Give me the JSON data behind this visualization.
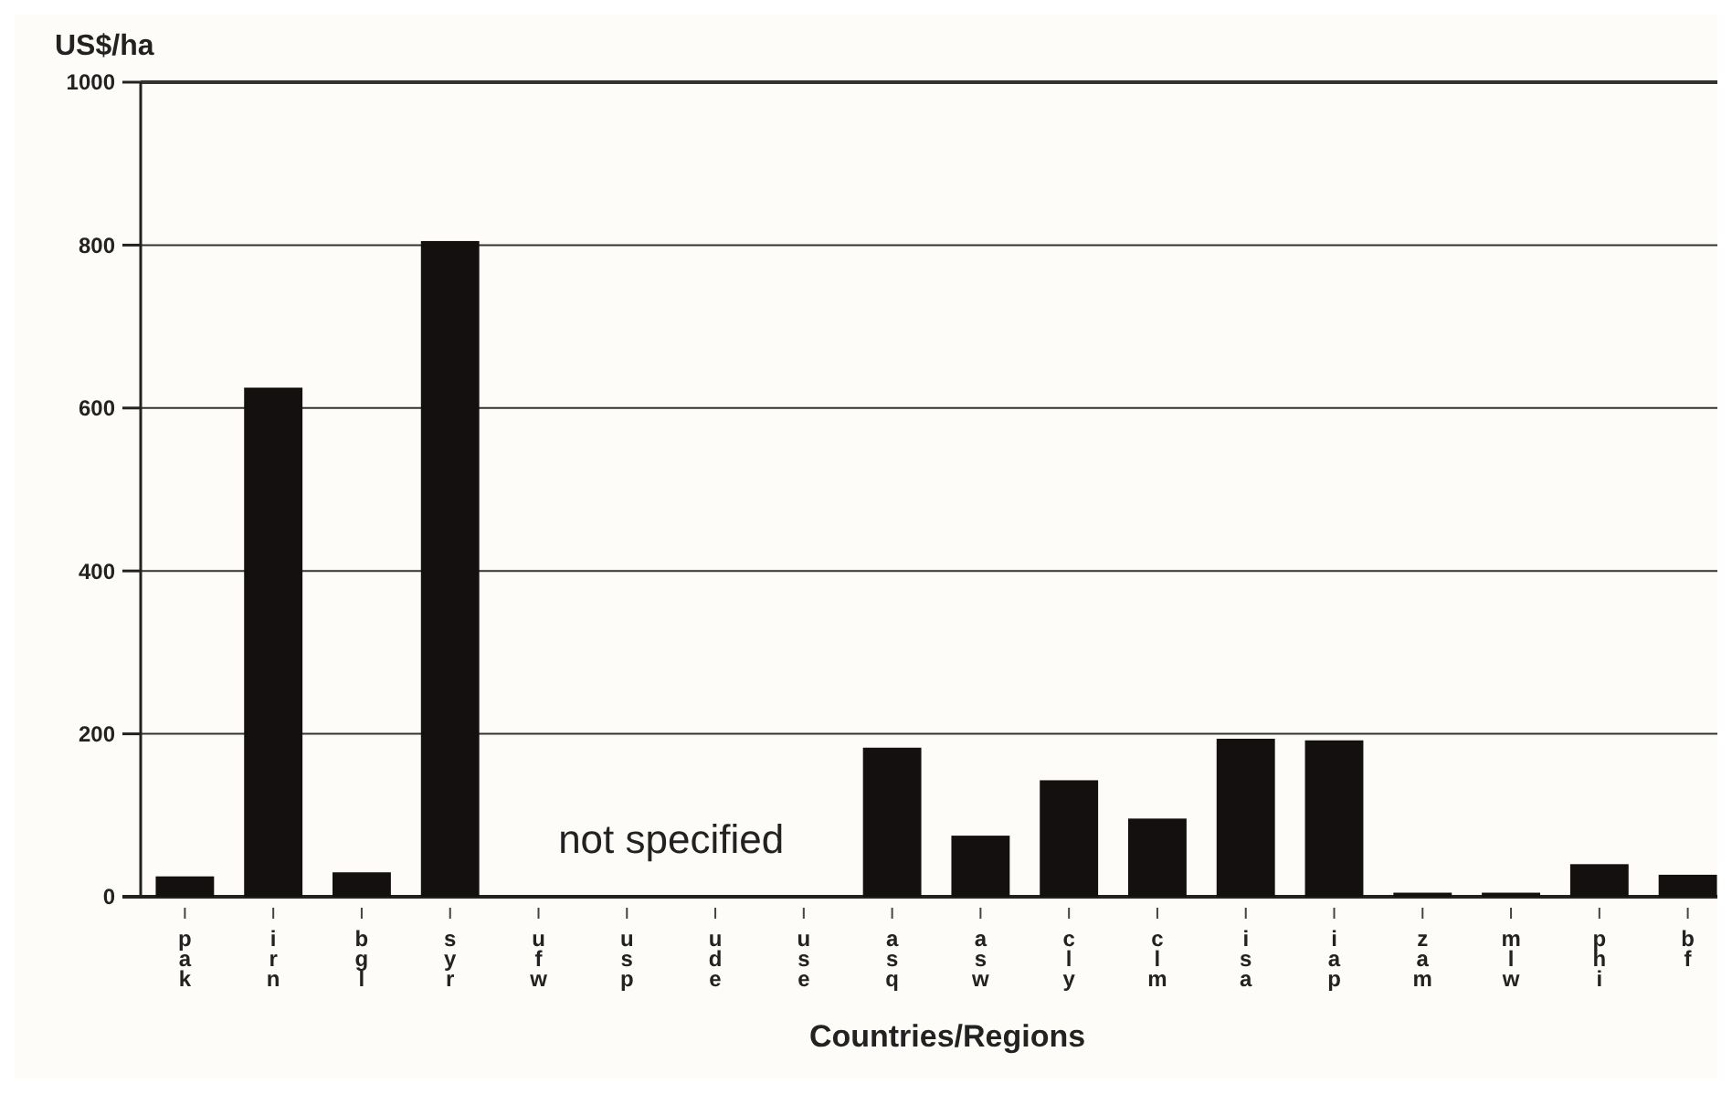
{
  "chart_data": {
    "type": "bar",
    "ylabel": "US$/ha",
    "xlabel": "Countries/Regions",
    "categories": [
      "pak",
      "irn",
      "bgl",
      "syr",
      "ufw",
      "usp",
      "ude",
      "use",
      "asq",
      "asw",
      "cly",
      "clm",
      "isa",
      "iap",
      "zam",
      "mlw",
      "phi",
      "bf"
    ],
    "values": [
      25,
      625,
      30,
      805,
      null,
      null,
      null,
      null,
      183,
      75,
      143,
      96,
      194,
      192,
      5,
      5,
      40,
      27
    ],
    "color": "#141010",
    "ylim": [
      0,
      1000
    ],
    "yticks": [
      0,
      200,
      400,
      600,
      800,
      1000
    ],
    "grid": "y",
    "annotations": [
      "not specified"
    ]
  }
}
